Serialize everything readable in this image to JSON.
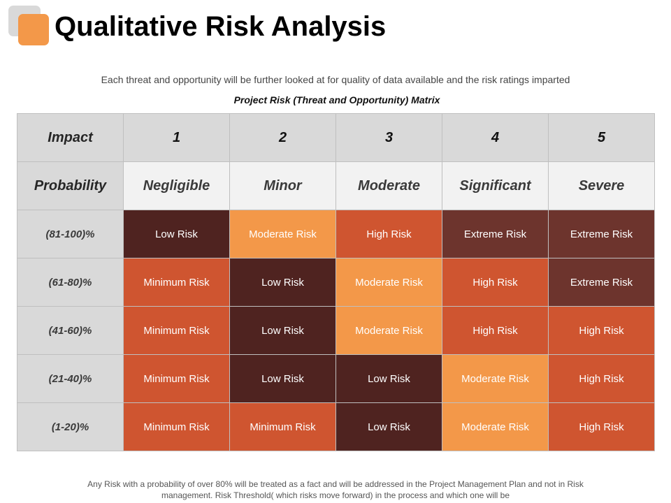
{
  "title": "Qualitative Risk Analysis",
  "subtitle": "Each threat and opportunity will be further  looked at for quality  of data available and the risk ratings imparted",
  "matrix_title": "Project Risk (Threat and Opportunity)  Matrix",
  "header": {
    "impact_label": "Impact",
    "impact_numbers": [
      "1",
      "2",
      "3",
      "4",
      "5"
    ],
    "probability_label": "Probability",
    "impact_names": [
      "Negligible",
      "Minor",
      "Moderate",
      "Significant",
      "Severe"
    ]
  },
  "rows": [
    {
      "probability": "(81-100)%",
      "cells": [
        "Low Risk",
        "Moderate Risk",
        "High Risk",
        "Extreme Risk",
        "Extreme Risk"
      ]
    },
    {
      "probability": "(61-80)%",
      "cells": [
        "Minimum Risk",
        "Low Risk",
        "Moderate Risk",
        "High Risk",
        "Extreme Risk"
      ]
    },
    {
      "probability": "(41-60)%",
      "cells": [
        "Minimum Risk",
        "Low Risk",
        "Moderate Risk",
        "High Risk",
        "High Risk"
      ]
    },
    {
      "probability": "(21-40)%",
      "cells": [
        "Minimum Risk",
        "Low Risk",
        "Low Risk",
        "Moderate Risk",
        "High Risk"
      ]
    },
    {
      "probability": "(1-20)%",
      "cells": [
        "Minimum Risk",
        "Minimum Risk",
        "Low Risk",
        "Moderate Risk",
        "High Risk"
      ]
    }
  ],
  "risk_colors": {
    "Low Risk": "#4f2320",
    "Minimum Risk": "#cf5530",
    "Moderate Risk": "#f39849",
    "High Risk": "#cf5530",
    "Extreme Risk": "#6d342d"
  },
  "footer": {
    "line1": "Any Risk with a probability of over  80% will be treated as a fact and will be addressed  in the Project Management  Plan and not in Risk",
    "line2": "management.  Risk Threshold(  which risks move  forward)  in the process and which one will be"
  }
}
